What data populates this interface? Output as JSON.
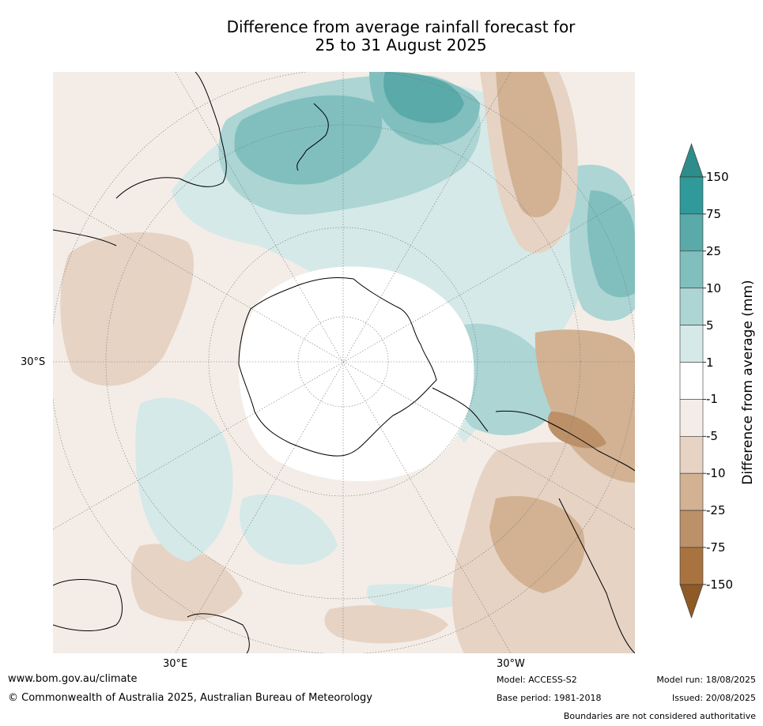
{
  "title": {
    "line1": "Difference from average rainfall forecast for",
    "line2": "25 to 31 August 2025"
  },
  "map": {
    "projection": "south-polar-stereographic",
    "axis_labels": {
      "lat_left": "30°S",
      "lon_left": "30°E",
      "lon_right": "30°W"
    },
    "land_color": "#000000",
    "graticule_color": "#777777"
  },
  "colorbar": {
    "label": "Difference from average (mm)",
    "ticks": [
      "150",
      "75",
      "25",
      "10",
      "5",
      "1",
      "-1",
      "-5",
      "-10",
      "-25",
      "-75",
      "-150"
    ],
    "bins": [
      {
        "color": "#2e8c8a"
      },
      {
        "color": "#30999a"
      },
      {
        "color": "#5aaaa9"
      },
      {
        "color": "#80bfbe"
      },
      {
        "color": "#acd5d4"
      },
      {
        "color": "#d5e9e8"
      },
      {
        "color": "#ffffff"
      },
      {
        "color": "#f4ede7"
      },
      {
        "color": "#e6d3c4"
      },
      {
        "color": "#d2b293"
      },
      {
        "color": "#bc9169"
      },
      {
        "color": "#a9733f"
      },
      {
        "color": "#8f5a26"
      }
    ]
  },
  "footer": {
    "website": "www.bom.gov.au/climate",
    "copyright": "© Commonwealth of Australia 2025, Australian Bureau of Meteorology",
    "model": "Model: ACCESS-S2",
    "base_period": "Base period: 1981-2018",
    "model_run": "Model run: 18/08/2025",
    "issued": "Issued: 20/08/2025",
    "disclaimer": "Boundaries are not considered authoritative"
  }
}
